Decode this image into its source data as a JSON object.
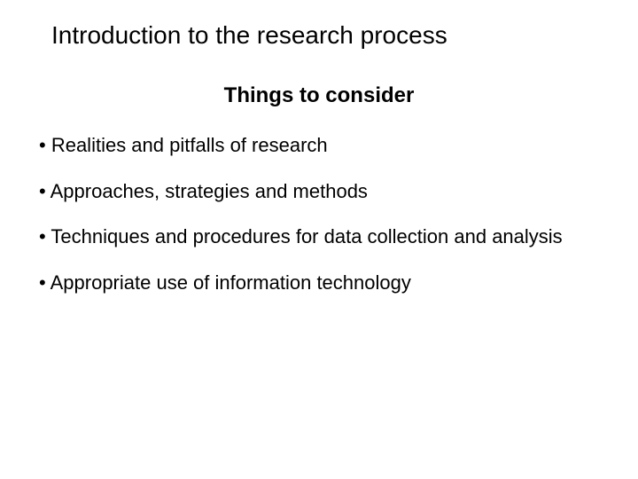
{
  "slide": {
    "title": "Introduction to the research process",
    "subtitle": "Things to consider",
    "bullets": [
      "Realities and  pitfalls of research",
      "Approaches, strategies and methods",
      "Techniques and procedures for data collection and analysis",
      "Appropriate use of information technology"
    ]
  },
  "style": {
    "background_color": "#ffffff",
    "text_color": "#000000",
    "title_fontsize": 28,
    "title_fontweight": 400,
    "subtitle_fontsize": 24,
    "subtitle_fontweight": 700,
    "body_fontsize": 22,
    "body_fontweight": 400,
    "font_family": "Arial"
  }
}
